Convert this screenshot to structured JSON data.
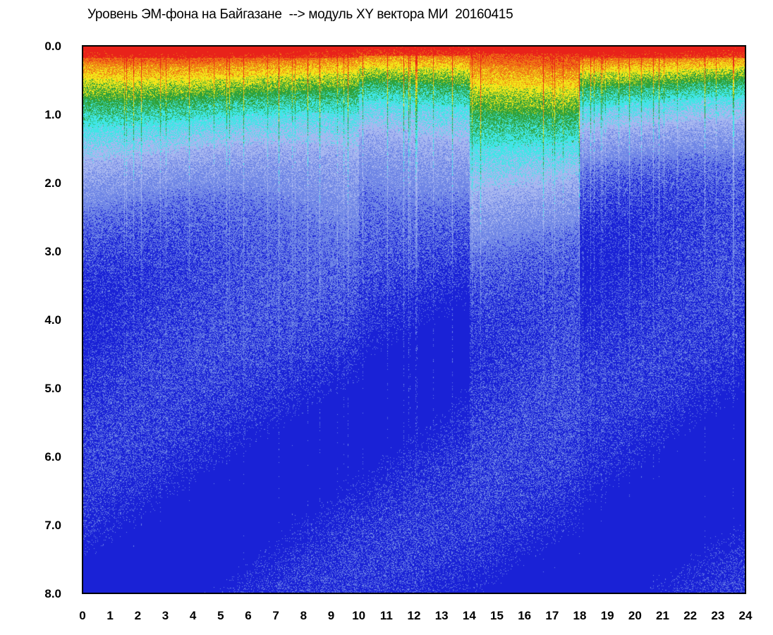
{
  "chart_data": {
    "type": "heatmap",
    "title": "Уровень ЭМ-фона на Байгазане  --> модуль XY вектора МИ  20160415",
    "xlabel": "",
    "ylabel": "",
    "x_ticks": [
      "0",
      "1",
      "2",
      "3",
      "4",
      "5",
      "6",
      "7",
      "8",
      "9",
      "10",
      "11",
      "12",
      "13",
      "14",
      "15",
      "16",
      "17",
      "18",
      "19",
      "20",
      "21",
      "22",
      "23",
      "24"
    ],
    "y_ticks": [
      "0.0",
      "1.0",
      "2.0",
      "3.0",
      "4.0",
      "5.0",
      "6.0",
      "7.0",
      "8.0"
    ],
    "xlim": [
      0,
      24
    ],
    "ylim": [
      0,
      8
    ],
    "y_inverted": true,
    "grid": false,
    "colorscale": [
      "#1a22d6",
      "#6f86e6",
      "#a8b8f0",
      "#3fe6e6",
      "#2fa23a",
      "#f2e61a",
      "#f07a14",
      "#e8221a"
    ],
    "description_levels": [
      {
        "x_range": [
          0,
          10
        ],
        "top_band_height": 0.5,
        "green_until": 1.6
      },
      {
        "x_range": [
          10,
          14
        ],
        "top_band_height": 0.4,
        "green_until": 1.3
      },
      {
        "x_range": [
          14,
          18
        ],
        "top_band_height": 0.3,
        "green_until": 2.0
      },
      {
        "x_range": [
          18,
          24
        ],
        "top_band_height": 0.5,
        "green_until": 1.2
      }
    ]
  }
}
